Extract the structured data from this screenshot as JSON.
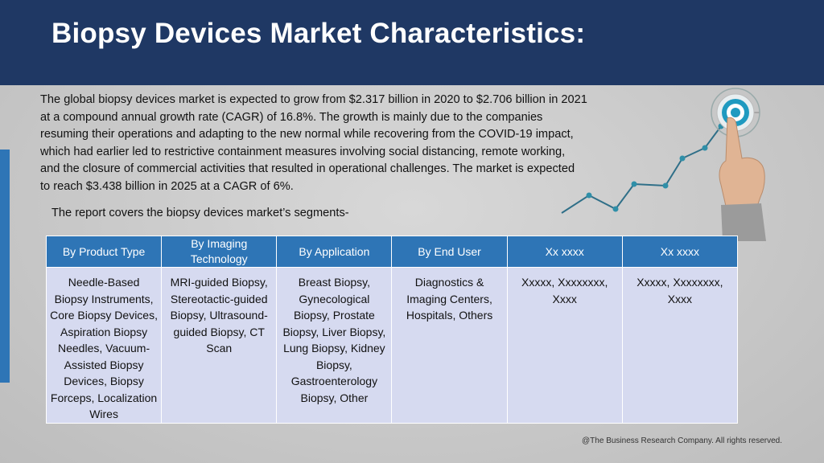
{
  "slide": {
    "title": "Biopsy Devices Market Characteristics:",
    "intro": "The global biopsy devices market is expected to grow from $2.317 billion in 2020 to $2.706 billion in 2021 at a compound annual growth rate (CAGR) of 16.8%. The growth is mainly due to the companies resuming their operations and adapting to the new normal while recovering from the COVID-19 impact, which had earlier led to restrictive containment measures involving social distancing, remote working, and the closure of commercial activities that resulted in operational challenges. The market is expected to reach $3.438 billion in 2025 at a CAGR of 6%.",
    "segments_line": "The report covers the biopsy devices market’s segments-",
    "footer": "@The Business Research Company. All rights reserved."
  },
  "table": {
    "headers": [
      "By Product Type",
      "By Imaging Technology",
      "By Application",
      "By End User",
      "Xx xxxx",
      "Xx xxxx"
    ],
    "cells": [
      "Needle-Based Biopsy Instruments, Core Biopsy Devices, Aspiration Biopsy Needles, Vacuum-Assisted Biopsy Devices, Biopsy Forceps, Localization Wires",
      "MRI-guided Biopsy, Stereotactic-guided Biopsy, Ultrasound-guided Biopsy, CT Scan",
      "Breast Biopsy, Gynecological Biopsy, Prostate Biopsy, Liver Biopsy, Lung Biopsy, Kidney Biopsy, Gastroenterology Biopsy, Other",
      "Diagnostics & Imaging Centers, Hospitals, Others",
      "Xxxxx, Xxxxxxxx, Xxxx",
      "Xxxxx, Xxxxxxxx, Xxxx"
    ]
  },
  "colors": {
    "header_bg": "#1f3864",
    "accent": "#2e75b6",
    "table_cell_bg": "#d6daf0",
    "chart_line": "#2f6f88"
  },
  "icons": [
    "target-icon",
    "pointing-hand-icon",
    "trend-line-icon"
  ]
}
